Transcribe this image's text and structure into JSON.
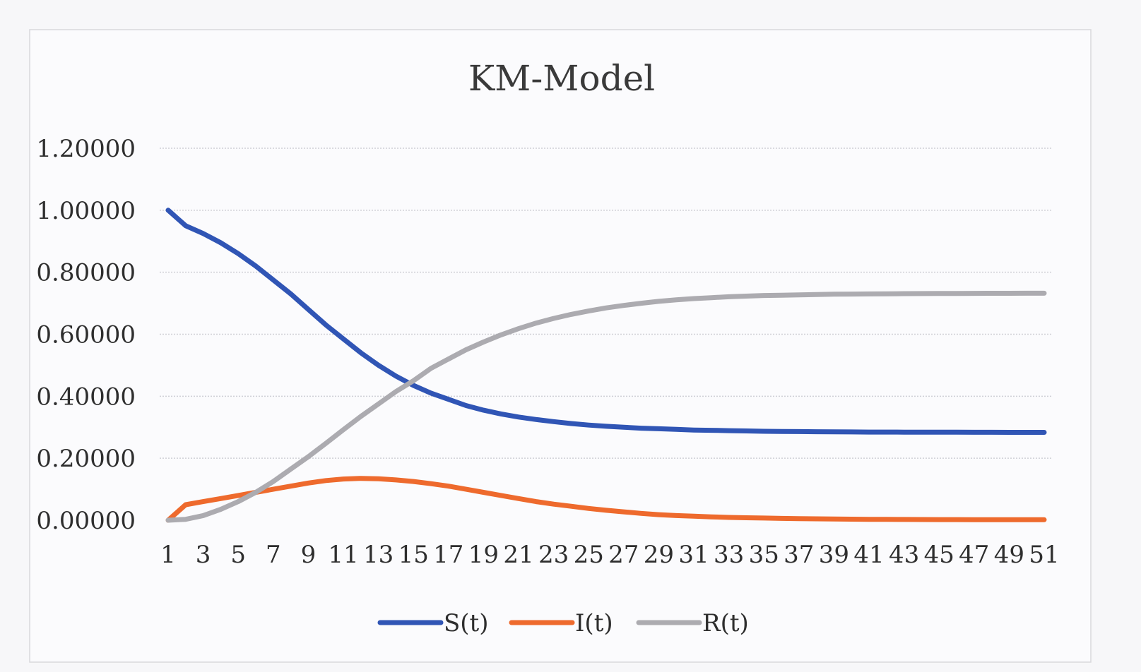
{
  "chart_data": {
    "type": "line",
    "title": "KM-Model",
    "xlabel": "",
    "ylabel": "",
    "ylim": [
      0,
      1.2
    ],
    "yticks": [
      "0.00000",
      "0.20000",
      "0.40000",
      "0.60000",
      "0.80000",
      "1.00000",
      "1.20000"
    ],
    "x": [
      1,
      2,
      3,
      4,
      5,
      6,
      7,
      8,
      9,
      10,
      11,
      12,
      13,
      14,
      15,
      16,
      17,
      18,
      19,
      20,
      21,
      22,
      23,
      24,
      25,
      26,
      27,
      28,
      29,
      30,
      31,
      32,
      33,
      34,
      35,
      36,
      37,
      38,
      39,
      40,
      41,
      42,
      43,
      44,
      45,
      46,
      47,
      48,
      49,
      50,
      51
    ],
    "xtick_labels": [
      "1",
      "3",
      "5",
      "7",
      "9",
      "11",
      "13",
      "15",
      "17",
      "19",
      "21",
      "23",
      "25",
      "27",
      "29",
      "31",
      "33",
      "35",
      "37",
      "39",
      "41",
      "43",
      "45",
      "47",
      "49",
      "51"
    ],
    "grid": true,
    "legend_position": "bottom",
    "series": [
      {
        "name": "S(t)",
        "color": "#3055b5",
        "values": [
          1.0,
          0.95,
          0.925,
          0.895,
          0.86,
          0.82,
          0.775,
          0.73,
          0.68,
          0.63,
          0.585,
          0.54,
          0.5,
          0.465,
          0.435,
          0.41,
          0.39,
          0.37,
          0.355,
          0.343,
          0.333,
          0.325,
          0.318,
          0.312,
          0.307,
          0.303,
          0.3,
          0.297,
          0.295,
          0.293,
          0.291,
          0.29,
          0.289,
          0.288,
          0.287,
          0.2865,
          0.286,
          0.2855,
          0.285,
          0.2848,
          0.2845,
          0.2843,
          0.2842,
          0.2841,
          0.284,
          0.2839,
          0.2838,
          0.2837,
          0.2836,
          0.2835,
          0.2835
        ]
      },
      {
        "name": "I(t)",
        "color": "#ee6a2d",
        "values": [
          0.0,
          0.05,
          0.06,
          0.07,
          0.08,
          0.09,
          0.1,
          0.11,
          0.12,
          0.128,
          0.133,
          0.135,
          0.134,
          0.13,
          0.125,
          0.118,
          0.11,
          0.1,
          0.09,
          0.08,
          0.07,
          0.06,
          0.052,
          0.045,
          0.038,
          0.032,
          0.027,
          0.022,
          0.018,
          0.015,
          0.013,
          0.011,
          0.009,
          0.008,
          0.007,
          0.006,
          0.005,
          0.0045,
          0.004,
          0.0035,
          0.003,
          0.0028,
          0.0025,
          0.0023,
          0.0021,
          0.002,
          0.0019,
          0.0018,
          0.0017,
          0.0016,
          0.0015
        ]
      },
      {
        "name": "R(t)",
        "color": "#acabb0",
        "values": [
          0.0,
          0.003,
          0.015,
          0.035,
          0.06,
          0.09,
          0.125,
          0.165,
          0.205,
          0.248,
          0.292,
          0.335,
          0.375,
          0.415,
          0.45,
          0.49,
          0.52,
          0.55,
          0.575,
          0.598,
          0.618,
          0.636,
          0.651,
          0.664,
          0.675,
          0.685,
          0.693,
          0.7,
          0.706,
          0.711,
          0.715,
          0.718,
          0.721,
          0.723,
          0.725,
          0.726,
          0.727,
          0.728,
          0.729,
          0.7295,
          0.73,
          0.7305,
          0.731,
          0.7312,
          0.7314,
          0.7316,
          0.7318,
          0.732,
          0.7321,
          0.7322,
          0.7323
        ]
      }
    ]
  }
}
